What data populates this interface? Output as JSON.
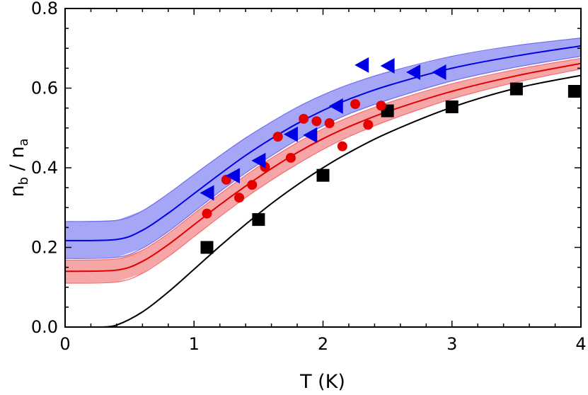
{
  "chart_data": {
    "type": "scatter",
    "title": "",
    "xlabel": "T (K)",
    "ylabel_base": "n",
    "ylabel_num_sub": "b",
    "ylabel_slash": " / ",
    "ylabel_den_sub": "a",
    "xlim": [
      0,
      4
    ],
    "ylim": [
      0,
      0.8
    ],
    "xticks": [
      0,
      1,
      2,
      3,
      4
    ],
    "xtick_labels": [
      "0",
      "1",
      "2",
      "3",
      "4"
    ],
    "yticks": [
      0.0,
      0.2,
      0.4,
      0.6,
      0.8
    ],
    "ytick_labels": [
      "0.0",
      "0.2",
      "0.4",
      "0.6",
      "0.8"
    ],
    "grid": false,
    "bands": [
      {
        "color": "#6f6ff0",
        "upper": [
          [
            0,
            0.265
          ],
          [
            0.4,
            0.268
          ],
          [
            0.6,
            0.292
          ],
          [
            0.8,
            0.335
          ],
          [
            1.0,
            0.383
          ],
          [
            1.2,
            0.43
          ],
          [
            1.4,
            0.475
          ],
          [
            1.6,
            0.515
          ],
          [
            1.8,
            0.552
          ],
          [
            2.0,
            0.583
          ],
          [
            2.2,
            0.609
          ],
          [
            2.5,
            0.64
          ],
          [
            3.0,
            0.68
          ],
          [
            3.5,
            0.707
          ],
          [
            4.0,
            0.726
          ]
        ],
        "lower": [
          [
            0,
            0.172
          ],
          [
            0.4,
            0.175
          ],
          [
            0.6,
            0.198
          ],
          [
            0.8,
            0.24
          ],
          [
            1.0,
            0.29
          ],
          [
            1.2,
            0.34
          ],
          [
            1.4,
            0.387
          ],
          [
            1.6,
            0.43
          ],
          [
            1.8,
            0.47
          ],
          [
            2.0,
            0.505
          ],
          [
            2.2,
            0.535
          ],
          [
            2.5,
            0.57
          ],
          [
            3.0,
            0.618
          ],
          [
            3.5,
            0.653
          ],
          [
            4.0,
            0.68
          ]
        ]
      },
      {
        "color": "#f07070",
        "upper": [
          [
            0,
            0.168
          ],
          [
            0.4,
            0.171
          ],
          [
            0.6,
            0.193
          ],
          [
            0.8,
            0.235
          ],
          [
            1.0,
            0.285
          ],
          [
            1.2,
            0.334
          ],
          [
            1.4,
            0.381
          ],
          [
            1.6,
            0.424
          ],
          [
            1.8,
            0.463
          ],
          [
            2.0,
            0.498
          ],
          [
            2.2,
            0.527
          ],
          [
            2.5,
            0.563
          ],
          [
            3.0,
            0.611
          ],
          [
            3.5,
            0.647
          ],
          [
            4.0,
            0.675
          ]
        ],
        "lower": [
          [
            0,
            0.11
          ],
          [
            0.4,
            0.113
          ],
          [
            0.6,
            0.135
          ],
          [
            0.8,
            0.177
          ],
          [
            1.0,
            0.227
          ],
          [
            1.2,
            0.277
          ],
          [
            1.4,
            0.325
          ],
          [
            1.6,
            0.369
          ],
          [
            1.8,
            0.409
          ],
          [
            2.0,
            0.446
          ],
          [
            2.2,
            0.478
          ],
          [
            2.5,
            0.518
          ],
          [
            3.0,
            0.573
          ],
          [
            3.5,
            0.615
          ],
          [
            4.0,
            0.648
          ]
        ]
      }
    ],
    "series": [
      {
        "marker": "line",
        "color": "#0000e6",
        "points": [
          [
            0,
            0.217
          ],
          [
            0.4,
            0.22
          ],
          [
            0.6,
            0.243
          ],
          [
            0.8,
            0.286
          ],
          [
            1.0,
            0.335
          ],
          [
            1.2,
            0.384
          ],
          [
            1.4,
            0.431
          ],
          [
            1.6,
            0.473
          ],
          [
            1.8,
            0.511
          ],
          [
            2.0,
            0.544
          ],
          [
            2.2,
            0.572
          ],
          [
            2.5,
            0.606
          ],
          [
            3.0,
            0.65
          ],
          [
            3.5,
            0.681
          ],
          [
            4.0,
            0.706
          ]
        ]
      },
      {
        "marker": "line",
        "color": "#e00000",
        "points": [
          [
            0,
            0.14
          ],
          [
            0.4,
            0.143
          ],
          [
            0.6,
            0.165
          ],
          [
            0.8,
            0.207
          ],
          [
            1.0,
            0.257
          ],
          [
            1.2,
            0.307
          ],
          [
            1.4,
            0.354
          ],
          [
            1.6,
            0.398
          ],
          [
            1.8,
            0.438
          ],
          [
            2.0,
            0.473
          ],
          [
            2.2,
            0.503
          ],
          [
            2.5,
            0.541
          ],
          [
            3.0,
            0.592
          ],
          [
            3.5,
            0.631
          ],
          [
            4.0,
            0.662
          ]
        ]
      },
      {
        "marker": "line",
        "color": "#000000",
        "points": [
          [
            0.28,
            0.0
          ],
          [
            0.4,
            0.005
          ],
          [
            0.6,
            0.038
          ],
          [
            0.8,
            0.088
          ],
          [
            1.0,
            0.145
          ],
          [
            1.2,
            0.203
          ],
          [
            1.4,
            0.258
          ],
          [
            1.6,
            0.31
          ],
          [
            1.8,
            0.357
          ],
          [
            2.0,
            0.4
          ],
          [
            2.2,
            0.438
          ],
          [
            2.5,
            0.487
          ],
          [
            3.0,
            0.552
          ],
          [
            3.5,
            0.6
          ],
          [
            4.0,
            0.632
          ]
        ]
      },
      {
        "marker": "square",
        "color": "#000000",
        "points": [
          [
            1.1,
            0.2
          ],
          [
            1.5,
            0.27
          ],
          [
            2.0,
            0.381
          ],
          [
            2.5,
            0.543
          ],
          [
            3.0,
            0.553
          ],
          [
            3.5,
            0.598
          ],
          [
            3.95,
            0.592
          ]
        ]
      },
      {
        "marker": "circle",
        "color": "#e60000",
        "points": [
          [
            1.1,
            0.285
          ],
          [
            1.25,
            0.37
          ],
          [
            1.35,
            0.325
          ],
          [
            1.45,
            0.357
          ],
          [
            1.55,
            0.402
          ],
          [
            1.65,
            0.478
          ],
          [
            1.75,
            0.425
          ],
          [
            1.85,
            0.523
          ],
          [
            1.95,
            0.517
          ],
          [
            2.05,
            0.512
          ],
          [
            2.15,
            0.454
          ],
          [
            2.25,
            0.56
          ],
          [
            2.35,
            0.508
          ],
          [
            2.45,
            0.556
          ]
        ]
      },
      {
        "marker": "triangle-left",
        "color": "#0000e6",
        "points": [
          [
            1.1,
            0.337
          ],
          [
            1.3,
            0.38
          ],
          [
            1.5,
            0.418
          ],
          [
            1.75,
            0.484
          ],
          [
            1.9,
            0.482
          ],
          [
            2.1,
            0.555
          ],
          [
            2.3,
            0.658
          ],
          [
            2.5,
            0.656
          ],
          [
            2.7,
            0.64
          ],
          [
            2.9,
            0.64
          ]
        ]
      }
    ]
  }
}
